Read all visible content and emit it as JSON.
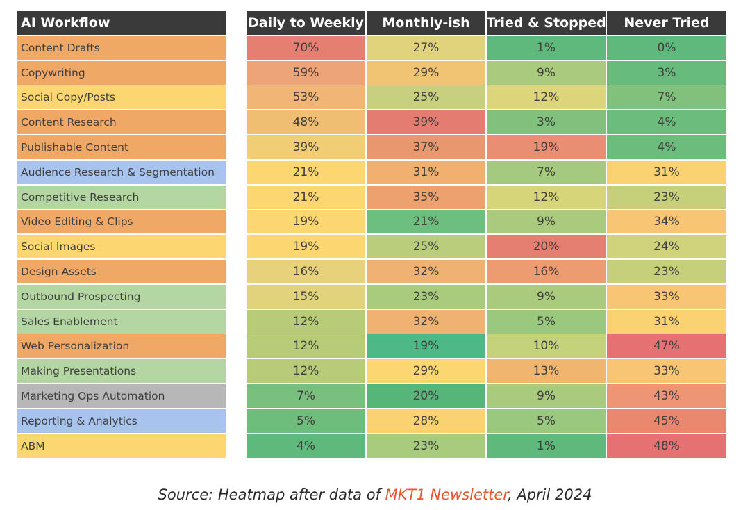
{
  "colors": {
    "header_bg": "#3a3a3a",
    "orange": "#f0a866",
    "blue": "#a7c3ee",
    "light_green": "#b4d6a2",
    "yellow": "#fcd771",
    "gray": "#b7b7b7",
    "caption_link": "#e8562a"
  },
  "chart_data": {
    "type": "heatmap",
    "title": "",
    "row_header": "AI Workflow",
    "columns": [
      "Daily to Weekly",
      "Monthly-ish",
      "Tried & Stopped",
      "Never Tried"
    ],
    "rows": [
      {
        "label": "Content Drafts",
        "label_color": "orange",
        "values": [
          "70%",
          "27%",
          "1%",
          "0%"
        ]
      },
      {
        "label": "Copywriting",
        "label_color": "orange",
        "values": [
          "59%",
          "29%",
          "9%",
          "3%"
        ]
      },
      {
        "label": "Social Copy/Posts",
        "label_color": "yellow",
        "values": [
          "53%",
          "25%",
          "12%",
          "7%"
        ]
      },
      {
        "label": "Content Research",
        "label_color": "orange",
        "values": [
          "48%",
          "39%",
          "3%",
          "4%"
        ]
      },
      {
        "label": "Publishable Content",
        "label_color": "orange",
        "values": [
          "39%",
          "37%",
          "19%",
          "4%"
        ]
      },
      {
        "label": "Audience Research & Segmentation",
        "label_color": "blue",
        "values": [
          "21%",
          "31%",
          "7%",
          "31%"
        ]
      },
      {
        "label": "Competitive Research",
        "label_color": "light_green",
        "values": [
          "21%",
          "35%",
          "12%",
          "23%"
        ]
      },
      {
        "label": "Video Editing & Clips",
        "label_color": "orange",
        "values": [
          "19%",
          "21%",
          "9%",
          "34%"
        ]
      },
      {
        "label": "Social Images",
        "label_color": "yellow",
        "values": [
          "19%",
          "25%",
          "20%",
          "24%"
        ]
      },
      {
        "label": "Design Assets",
        "label_color": "orange",
        "values": [
          "16%",
          "32%",
          "16%",
          "23%"
        ]
      },
      {
        "label": "Outbound Prospecting",
        "label_color": "light_green",
        "values": [
          "15%",
          "23%",
          "9%",
          "33%"
        ]
      },
      {
        "label": "Sales Enablement",
        "label_color": "light_green",
        "values": [
          "12%",
          "32%",
          "5%",
          "31%"
        ]
      },
      {
        "label": "Web Personalization",
        "label_color": "orange",
        "values": [
          "12%",
          "19%",
          "10%",
          "47%"
        ]
      },
      {
        "label": "Making Presentations",
        "label_color": "light_green",
        "values": [
          "12%",
          "29%",
          "13%",
          "33%"
        ]
      },
      {
        "label": "Marketing Ops Automation",
        "label_color": "gray",
        "values": [
          "7%",
          "20%",
          "9%",
          "43%"
        ]
      },
      {
        "label": "Reporting & Analytics",
        "label_color": "blue",
        "values": [
          "5%",
          "28%",
          "5%",
          "45%"
        ]
      },
      {
        "label": "ABM",
        "label_color": "yellow",
        "values": [
          "4%",
          "23%",
          "1%",
          "48%"
        ]
      }
    ],
    "cell_colors": [
      [
        "#e57f72",
        "#e1d37e",
        "#5fb97c",
        "#5fb97c"
      ],
      [
        "#eda479",
        "#f0c472",
        "#aacb7e",
        "#67bc7d"
      ],
      [
        "#f1b576",
        "#c8cf7f",
        "#ddd57a",
        "#82c07e"
      ],
      [
        "#f0be73",
        "#e57c72",
        "#82c07e",
        "#6cbc7d"
      ],
      [
        "#f1ce74",
        "#e8976f",
        "#ea8e73",
        "#6cbc7d"
      ],
      [
        "#fcd771",
        "#f1b070",
        "#a5c97f",
        "#fbd272"
      ],
      [
        "#fcd771",
        "#eca16f",
        "#d7d57a",
        "#c6cf7a"
      ],
      [
        "#fcd771",
        "#6cbf7e",
        "#aacb7e",
        "#f7c574"
      ],
      [
        "#fcd771",
        "#b9cd7d",
        "#e57f72",
        "#d0d27c"
      ],
      [
        "#e7d27b",
        "#f0b273",
        "#ed9b71",
        "#c6cf7a"
      ],
      [
        "#e0d37c",
        "#a8cb7d",
        "#aacb7e",
        "#f7c574"
      ],
      [
        "#b8cb79",
        "#f0b273",
        "#9ac87e",
        "#fbd272"
      ],
      [
        "#b8cb79",
        "#4eb886",
        "#c4d27c",
        "#e57173"
      ],
      [
        "#b8cb79",
        "#fcd771",
        "#f0b56e",
        "#f7c574"
      ],
      [
        "#79c07e",
        "#56b67a",
        "#aacb7e",
        "#ee9575"
      ],
      [
        "#6fbd7d",
        "#fbd272",
        "#9ac87e",
        "#e9876f"
      ],
      [
        "#5fb97c",
        "#a8cb7d",
        "#5fb97c",
        "#e57173"
      ]
    ]
  },
  "caption": {
    "prefix": "Source: Heatmap after data of ",
    "link_text": "MKT1 Newsletter",
    "suffix": ", April 2024"
  }
}
